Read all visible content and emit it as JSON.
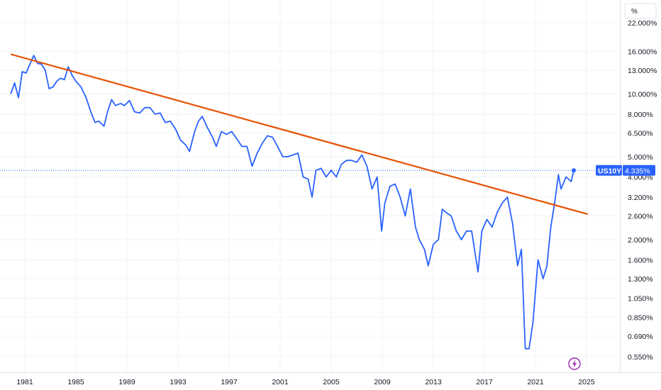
{
  "chart_data": {
    "type": "line",
    "scale": "log",
    "unit_label": "%",
    "symbol": "US10Y",
    "last_value_label": "4.335%",
    "y_ticks": [
      "22.000%",
      "16.000%",
      "13.000%",
      "10.000%",
      "8.000%",
      "6.500%",
      "5.000%",
      "4.000%",
      "3.200%",
      "2.600%",
      "2.000%",
      "1.600%",
      "1.300%",
      "1.050%",
      "0.850%",
      "0.690%",
      "0.550%"
    ],
    "x_ticks": [
      "1981",
      "1985",
      "1989",
      "1993",
      "1997",
      "2001",
      "2005",
      "2009",
      "2013",
      "2017",
      "2021",
      "2025"
    ],
    "grid": true,
    "series": [
      {
        "name": "US10Y",
        "color": "#2962ff",
        "x": [
          1979.9,
          1980.2,
          1980.5,
          1980.8,
          1981.1,
          1981.4,
          1981.7,
          1982.0,
          1982.3,
          1982.6,
          1982.9,
          1983.2,
          1983.5,
          1983.8,
          1984.1,
          1984.4,
          1984.7,
          1985.0,
          1985.4,
          1985.8,
          1986.2,
          1986.5,
          1986.8,
          1987.2,
          1987.5,
          1987.8,
          1988.1,
          1988.5,
          1988.8,
          1989.2,
          1989.6,
          1990.0,
          1990.4,
          1990.8,
          1991.2,
          1991.6,
          1992.0,
          1992.4,
          1992.8,
          1993.2,
          1993.6,
          1993.9,
          1994.3,
          1994.6,
          1994.9,
          1995.3,
          1995.7,
          1996.0,
          1996.4,
          1996.8,
          1997.2,
          1997.6,
          1998.0,
          1998.4,
          1998.8,
          1999.2,
          1999.6,
          2000.0,
          2000.4,
          2000.8,
          2001.2,
          2001.6,
          2002.0,
          2002.4,
          2002.8,
          2003.2,
          2003.5,
          2003.8,
          2004.2,
          2004.6,
          2005.0,
          2005.4,
          2005.8,
          2006.2,
          2006.6,
          2007.0,
          2007.4,
          2007.8,
          2008.2,
          2008.6,
          2008.95,
          2009.2,
          2009.6,
          2010.0,
          2010.4,
          2010.8,
          2011.2,
          2011.6,
          2011.9,
          2012.3,
          2012.6,
          2013.0,
          2013.4,
          2013.7,
          2014.0,
          2014.4,
          2014.8,
          2015.2,
          2015.6,
          2016.0,
          2016.5,
          2016.8,
          2017.2,
          2017.6,
          2018.0,
          2018.4,
          2018.8,
          2019.2,
          2019.6,
          2019.9,
          2020.2,
          2020.5,
          2020.8,
          2021.2,
          2021.6,
          2021.9,
          2022.2,
          2022.5,
          2022.8,
          2023.0,
          2023.4,
          2023.8,
          2024.0
        ],
        "values": [
          10.0,
          11.3,
          9.6,
          12.8,
          12.6,
          13.9,
          15.3,
          14.0,
          13.9,
          13.0,
          10.6,
          10.8,
          11.5,
          11.9,
          11.7,
          13.5,
          12.3,
          11.5,
          10.8,
          9.6,
          8.1,
          7.3,
          7.4,
          7.0,
          8.3,
          9.4,
          8.8,
          9.0,
          8.8,
          9.3,
          8.2,
          8.1,
          8.6,
          8.6,
          8.0,
          8.1,
          7.3,
          7.4,
          6.8,
          6.0,
          5.7,
          5.3,
          6.6,
          7.4,
          7.8,
          6.9,
          6.2,
          5.6,
          6.6,
          6.4,
          6.6,
          6.1,
          5.6,
          5.6,
          4.5,
          5.2,
          5.8,
          6.3,
          6.2,
          5.6,
          5.0,
          5.0,
          5.1,
          5.2,
          4.0,
          3.9,
          3.2,
          4.3,
          4.4,
          4.0,
          4.3,
          4.0,
          4.6,
          4.8,
          4.8,
          4.7,
          5.1,
          4.5,
          3.5,
          4.0,
          2.2,
          3.0,
          3.6,
          3.7,
          3.2,
          2.6,
          3.5,
          2.3,
          2.0,
          1.8,
          1.5,
          1.9,
          2.0,
          2.8,
          2.7,
          2.6,
          2.2,
          2.0,
          2.2,
          2.2,
          1.4,
          2.2,
          2.5,
          2.3,
          2.7,
          3.0,
          3.2,
          2.4,
          1.5,
          1.8,
          0.6,
          0.6,
          0.8,
          1.6,
          1.3,
          1.5,
          2.3,
          3.0,
          4.1,
          3.5,
          4.0,
          3.8,
          4.3
        ]
      },
      {
        "name": "Trendline",
        "color": "#e65100",
        "x": [
          1979.9,
          2025.1
        ],
        "values": [
          15.5,
          2.65
        ]
      }
    ]
  },
  "widgets": {
    "lightning_icon": "lightning-icon"
  }
}
